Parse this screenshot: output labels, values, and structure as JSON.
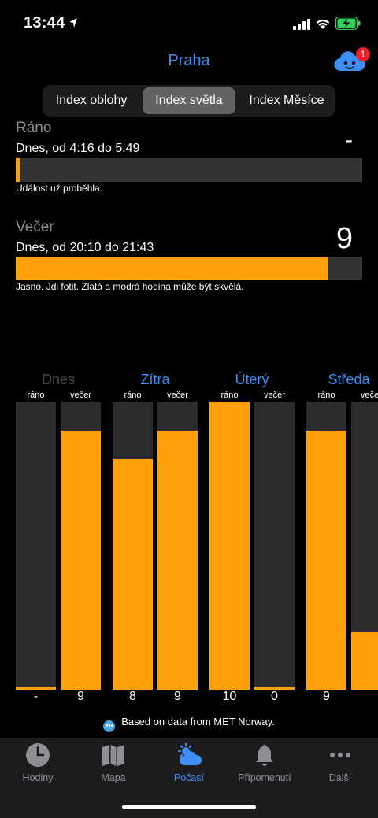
{
  "status_bar": {
    "time": "13:44"
  },
  "header": {
    "city": "Praha",
    "notification_count": "1"
  },
  "segmented": {
    "tabs": [
      {
        "label": "Index oblohy",
        "selected": false
      },
      {
        "label": "Index světla",
        "selected": true
      },
      {
        "label": "Index Měsíce",
        "selected": false
      }
    ]
  },
  "morning": {
    "title": "Ráno",
    "time": "Dnes, od 4:16 do 5:49",
    "value": "-",
    "level": 0.01,
    "note": "Událost už proběhla."
  },
  "evening": {
    "title": "Večer",
    "time": "Dnes, od 20:10 do 21:43",
    "value": "9",
    "level": 0.9,
    "note": "Jasno. Jdi fotit. Zlatá a modrá hodina může být skvělá."
  },
  "forecast": {
    "max": 10,
    "days": [
      {
        "name": "Dnes",
        "dim": true,
        "morning_label": "ráno",
        "evening_label": "večer",
        "morning_value": "-",
        "morning_level": 0.01,
        "evening_value": "9",
        "evening_level": 0.9
      },
      {
        "name": "Zítra",
        "dim": false,
        "morning_label": "ráno",
        "evening_label": "večer",
        "morning_value": "8",
        "morning_level": 0.8,
        "evening_value": "9",
        "evening_level": 0.9
      },
      {
        "name": "Úterý",
        "dim": false,
        "morning_label": "ráno",
        "evening_label": "večer",
        "morning_value": "10",
        "morning_level": 1.0,
        "evening_value": "0",
        "evening_level": 0.01
      },
      {
        "name": "Středa",
        "dim": false,
        "morning_label": "ráno",
        "evening_label": "večer",
        "morning_value": "9",
        "morning_level": 0.9,
        "evening_value": "",
        "evening_level": 0.2
      }
    ]
  },
  "source": {
    "text": "Based on data from MET Norway.",
    "icon_text": "YR"
  },
  "tabbar": {
    "items": [
      {
        "label": "Hodiny",
        "icon": "clock-icon",
        "active": false
      },
      {
        "label": "Mapa",
        "icon": "map-icon",
        "active": false
      },
      {
        "label": "Počasí",
        "icon": "weather-icon",
        "active": true
      },
      {
        "label": "Připomenutí",
        "icon": "bell-icon",
        "active": false
      },
      {
        "label": "Další",
        "icon": "more-icon",
        "active": false
      }
    ]
  },
  "colors": {
    "accent": "#3e8ef7",
    "fill": "#ff9f0a",
    "track": "#2c2c2e",
    "badge": "#e6232b"
  }
}
